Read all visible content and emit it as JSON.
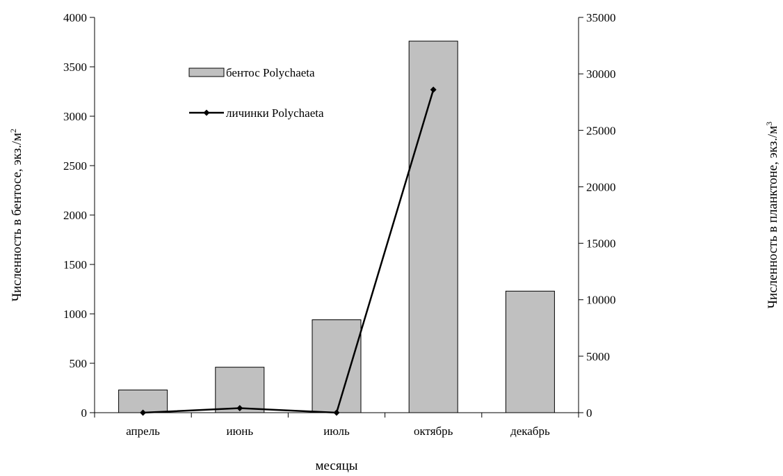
{
  "chart_data": {
    "type": "bar",
    "categories": [
      "апрель",
      "июнь",
      "июль",
      "октябрь",
      "декабрь"
    ],
    "series": [
      {
        "name": "бентос Polychaeta",
        "type": "bar",
        "axis": "left",
        "values": [
          230,
          460,
          940,
          3760,
          1230
        ],
        "color": "#c0c0c0"
      },
      {
        "name": "личинки Polychaeta",
        "type": "line",
        "axis": "right",
        "values": [
          0,
          400,
          0,
          28600,
          null
        ],
        "color": "#000000"
      }
    ],
    "xlabel": "месяцы",
    "ylabel": "Численность в бентосе, экз./м",
    "ylabel_sup": "2",
    "y2label": "Численность в планктоне, экз./м",
    "y2label_sup": "3",
    "ylim": [
      0,
      4000
    ],
    "y2lim": [
      0,
      35000
    ],
    "yticks": [
      "0",
      "500",
      "1000",
      "1500",
      "2000",
      "2500",
      "3000",
      "3500",
      "4000"
    ],
    "y2ticks": [
      "0",
      "5000",
      "10000",
      "15000",
      "20000",
      "25000",
      "30000",
      "35000"
    ],
    "grid": false,
    "legend_position": "top-left"
  }
}
